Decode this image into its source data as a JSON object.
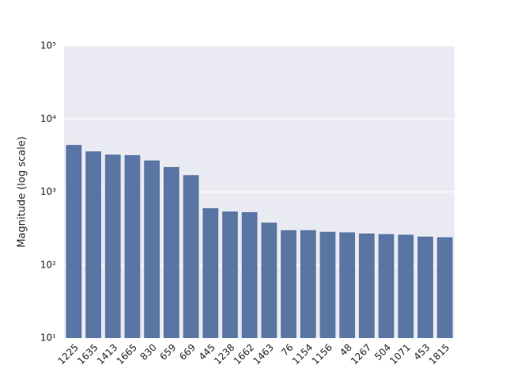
{
  "chart_data": {
    "type": "bar",
    "ylabel": "Magnitude (log scale)",
    "categories": [
      "1225",
      "1635",
      "1413",
      "1665",
      "830",
      "659",
      "669",
      "445",
      "1238",
      "1662",
      "1463",
      "76",
      "1154",
      "1156",
      "48",
      "1267",
      "504",
      "1071",
      "453",
      "1815"
    ],
    "values": [
      4400,
      3600,
      3250,
      3200,
      2700,
      2200,
      1700,
      600,
      540,
      530,
      380,
      300,
      300,
      285,
      280,
      270,
      265,
      260,
      245,
      240
    ],
    "color": "#5875a4",
    "yscale": "log",
    "ylim": [
      10,
      100000
    ],
    "yticks": [
      {
        "value": 10,
        "label": "10¹"
      },
      {
        "value": 100,
        "label": "10²"
      },
      {
        "value": 1000,
        "label": "10³"
      },
      {
        "value": 10000,
        "label": "10⁴"
      },
      {
        "value": 100000,
        "label": "10⁵"
      }
    ],
    "grid": true
  }
}
